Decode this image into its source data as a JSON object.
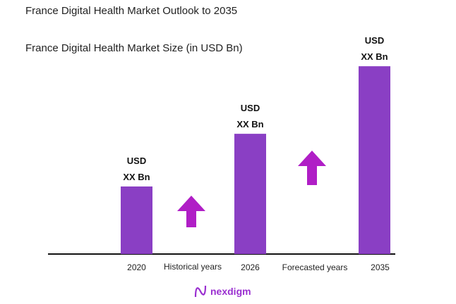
{
  "chart_data": {
    "type": "bar",
    "title": "France Digital Health Market Outlook to 2035",
    "subtitle": "France Digital Health Market Size (in USD Bn)",
    "categories": [
      "2020",
      "2026",
      "2035"
    ],
    "values": [
      1.0,
      1.78,
      2.78
    ],
    "value_note_relative": true,
    "data_labels": [
      [
        "USD",
        "XX Bn"
      ],
      [
        "USD",
        "XX Bn"
      ],
      [
        "USD",
        "XX Bn"
      ]
    ],
    "period_labels": [
      "Historical years",
      "Forecasted years"
    ],
    "grid": false,
    "bar_color": "#8a3fc4",
    "arrow_color": "#b01ec6"
  },
  "brand": {
    "name": "nexdigm",
    "color": "#9a2fd0"
  }
}
